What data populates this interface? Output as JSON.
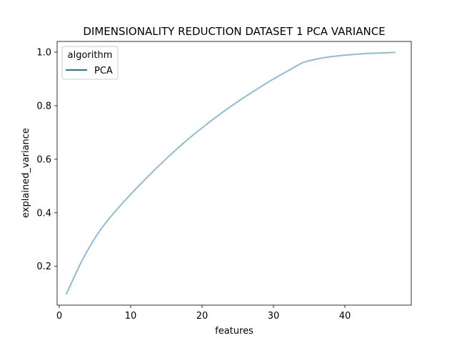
{
  "chart_data": {
    "type": "line",
    "title": "DIMENSIONALITY REDUCTION DATASET 1 PCA VARIANCE",
    "xlabel": "features",
    "ylabel": "explained_variance",
    "xlim": [
      -0.3,
      49.3
    ],
    "ylim": [
      0.055,
      1.04
    ],
    "xticks": [
      0,
      10,
      20,
      30,
      40
    ],
    "yticks": [
      0.2,
      0.4,
      0.6,
      0.8,
      1.0
    ],
    "xtick_labels": [
      "0",
      "10",
      "20",
      "30",
      "40"
    ],
    "ytick_labels": [
      "0.2",
      "0.4",
      "0.6",
      "0.8",
      "1.0"
    ],
    "grid": false,
    "legend": {
      "title": "algorithm",
      "position": "top-left",
      "entries": [
        "PCA"
      ]
    },
    "series": [
      {
        "name": "PCA",
        "color": "#1f77b4",
        "x": [
          1,
          2,
          3,
          4,
          5,
          6,
          7,
          8,
          9,
          10,
          11,
          12,
          13,
          14,
          15,
          16,
          17,
          18,
          19,
          20,
          21,
          22,
          23,
          24,
          25,
          26,
          27,
          28,
          29,
          30,
          31,
          32,
          33,
          34,
          35,
          36,
          37,
          38,
          39,
          40,
          41,
          42,
          43,
          44,
          45,
          46,
          47
        ],
        "values": [
          0.097,
          0.155,
          0.212,
          0.261,
          0.306,
          0.345,
          0.379,
          0.41,
          0.44,
          0.469,
          0.497,
          0.524,
          0.551,
          0.577,
          0.602,
          0.627,
          0.651,
          0.674,
          0.696,
          0.717,
          0.738,
          0.758,
          0.778,
          0.797,
          0.815,
          0.833,
          0.85,
          0.867,
          0.884,
          0.9,
          0.915,
          0.93,
          0.945,
          0.96,
          0.968,
          0.974,
          0.979,
          0.983,
          0.986,
          0.989,
          0.991,
          0.993,
          0.995,
          0.996,
          0.997,
          0.998,
          0.999
        ]
      }
    ]
  }
}
